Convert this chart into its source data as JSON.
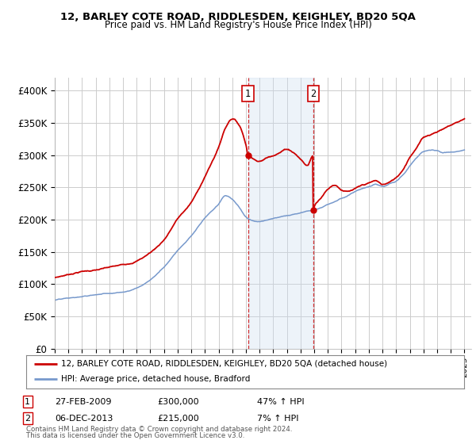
{
  "title": "12, BARLEY COTE ROAD, RIDDLESDEN, KEIGHLEY, BD20 5QA",
  "subtitle": "Price paid vs. HM Land Registry's House Price Index (HPI)",
  "xlim_start": 1995.0,
  "xlim_end": 2025.5,
  "ylim": [
    0,
    420000
  ],
  "yticks": [
    0,
    50000,
    100000,
    150000,
    200000,
    250000,
    300000,
    350000,
    400000
  ],
  "ytick_labels": [
    "£0",
    "£50K",
    "£100K",
    "£150K",
    "£200K",
    "£250K",
    "£300K",
    "£350K",
    "£400K"
  ],
  "sale1_x": 2009.15,
  "sale1_y": 300000,
  "sale2_x": 2013.92,
  "sale2_y": 215000,
  "sale1_label": "1",
  "sale2_label": "2",
  "sale1_date": "27-FEB-2009",
  "sale1_price": "£300,000",
  "sale1_hpi": "47% ↑ HPI",
  "sale2_date": "06-DEC-2013",
  "sale2_price": "£215,000",
  "sale2_hpi": "7% ↑ HPI",
  "line1_label": "12, BARLEY COTE ROAD, RIDDLESDEN, KEIGHLEY, BD20 5QA (detached house)",
  "line2_label": "HPI: Average price, detached house, Bradford",
  "line1_color": "#cc0000",
  "line2_color": "#7799cc",
  "shade_color": "#ccddf0",
  "footer_line1": "Contains HM Land Registry data © Crown copyright and database right 2024.",
  "footer_line2": "This data is licensed under the Open Government Licence v3.0.",
  "bg_color": "#ffffff",
  "grid_color": "#cccccc",
  "red_years": [
    1995,
    1996,
    1997,
    1998,
    1999,
    2000,
    2001,
    2002,
    2003,
    2004,
    2005,
    2006,
    2007,
    2007.5,
    2008.0,
    2008.5,
    2009.0,
    2009.15,
    2009.5,
    2010.0,
    2010.5,
    2011.0,
    2011.5,
    2012.0,
    2012.5,
    2013.0,
    2013.5,
    2013.91,
    2013.92,
    2014.0,
    2014.5,
    2015.0,
    2015.5,
    2016.0,
    2016.5,
    2017.0,
    2017.5,
    2018.0,
    2018.5,
    2019.0,
    2019.5,
    2020.0,
    2020.5,
    2021.0,
    2021.5,
    2022.0,
    2022.5,
    2023.0,
    2023.5,
    2024.0,
    2024.5,
    2025.0
  ],
  "red_vals": [
    110000,
    115000,
    120000,
    122000,
    125000,
    128000,
    135000,
    148000,
    168000,
    200000,
    225000,
    265000,
    310000,
    340000,
    355000,
    345000,
    315000,
    300000,
    295000,
    290000,
    295000,
    300000,
    305000,
    310000,
    305000,
    295000,
    285000,
    300000,
    215000,
    220000,
    235000,
    248000,
    255000,
    248000,
    245000,
    248000,
    252000,
    255000,
    258000,
    252000,
    255000,
    262000,
    275000,
    295000,
    310000,
    325000,
    330000,
    335000,
    340000,
    345000,
    350000,
    355000
  ],
  "blue_years": [
    1995,
    1996,
    1997,
    1998,
    1999,
    2000,
    2001,
    2002,
    2003,
    2004,
    2005,
    2006,
    2007,
    2007.5,
    2008.0,
    2008.5,
    2009.0,
    2009.5,
    2010.0,
    2010.5,
    2011.0,
    2011.5,
    2012.0,
    2012.5,
    2013.0,
    2013.5,
    2014.0,
    2014.5,
    2015.0,
    2015.5,
    2016.0,
    2016.5,
    2017.0,
    2017.5,
    2018.0,
    2018.5,
    2019.0,
    2019.5,
    2020.0,
    2020.5,
    2021.0,
    2021.5,
    2022.0,
    2022.5,
    2023.0,
    2023.5,
    2024.0,
    2024.5,
    2025.0
  ],
  "blue_vals": [
    75000,
    77000,
    79000,
    82000,
    85000,
    88000,
    95000,
    108000,
    128000,
    155000,
    178000,
    205000,
    225000,
    238000,
    232000,
    220000,
    205000,
    200000,
    198000,
    200000,
    202000,
    205000,
    208000,
    210000,
    212000,
    215000,
    218000,
    222000,
    228000,
    232000,
    238000,
    242000,
    248000,
    252000,
    255000,
    258000,
    255000,
    258000,
    262000,
    272000,
    285000,
    298000,
    308000,
    310000,
    308000,
    305000,
    305000,
    305000,
    308000
  ]
}
